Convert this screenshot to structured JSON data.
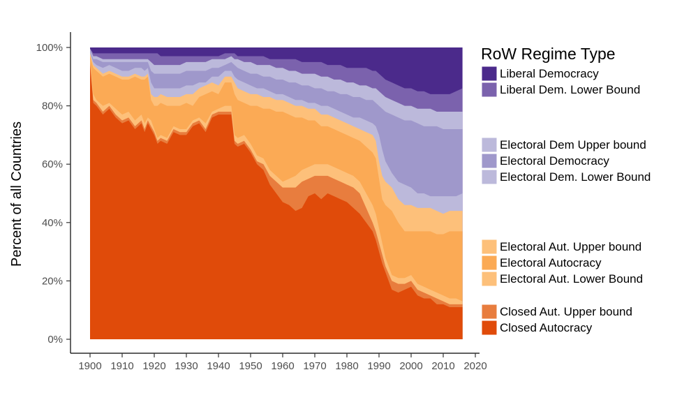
{
  "chart_data": {
    "type": "area",
    "stacked": true,
    "ylabel": "Percent of all Countries",
    "xlim": [
      1900,
      2016
    ],
    "ylim": [
      0,
      100
    ],
    "x_ticks": [
      1900,
      1910,
      1920,
      1930,
      1940,
      1950,
      1960,
      1970,
      1980,
      1990,
      2000,
      2010,
      2020
    ],
    "y_ticks": [
      {
        "value": 0,
        "label": "0%"
      },
      {
        "value": 20,
        "label": "20%"
      },
      {
        "value": 40,
        "label": "40%"
      },
      {
        "value": 60,
        "label": "60%"
      },
      {
        "value": 80,
        "label": "80%"
      },
      {
        "value": 100,
        "label": "100%"
      }
    ],
    "grid": false,
    "legend_title": "RoW Regime Type",
    "legend_position": "right",
    "x": [
      1900,
      1901,
      1902,
      1904,
      1906,
      1908,
      1910,
      1912,
      1914,
      1916,
      1917,
      1918,
      1919,
      1920,
      1921,
      1922,
      1924,
      1926,
      1928,
      1930,
      1932,
      1934,
      1936,
      1938,
      1940,
      1942,
      1944,
      1945,
      1946,
      1948,
      1950,
      1952,
      1954,
      1956,
      1958,
      1960,
      1962,
      1964,
      1966,
      1968,
      1970,
      1972,
      1974,
      1976,
      1978,
      1980,
      1982,
      1984,
      1986,
      1988,
      1989,
      1990,
      1991,
      1992,
      1994,
      1996,
      1998,
      2000,
      2002,
      2004,
      2006,
      2008,
      2010,
      2012,
      2014,
      2016
    ],
    "upper_edges": [
      {
        "name": "Closed Autocracy",
        "color": "#e04b0a",
        "values": [
          94,
          81,
          80,
          77,
          79,
          76,
          74,
          75,
          72,
          74,
          71,
          74,
          72,
          70,
          67,
          68,
          67,
          71,
          70,
          70,
          73,
          74,
          71,
          76,
          77,
          77,
          77,
          67,
          66,
          67,
          64,
          60,
          58,
          53,
          50,
          47,
          46,
          44,
          45,
          49,
          50,
          48,
          50,
          49,
          48,
          47,
          45,
          43,
          40,
          37,
          34,
          30,
          26,
          23,
          17,
          16,
          17,
          18,
          15,
          14,
          14,
          12,
          12,
          11,
          11,
          11
        ]
      },
      {
        "name": "Closed Aut. Upper bound",
        "color": "#e87d3e",
        "values": [
          95,
          82,
          81,
          78,
          80,
          77,
          75,
          76,
          73,
          75,
          72,
          75,
          73,
          71,
          68,
          69,
          68,
          72,
          71,
          71,
          74,
          75,
          72,
          77,
          78,
          78,
          78,
          68,
          67,
          68,
          65,
          61,
          60,
          56,
          54,
          52,
          52,
          52,
          54,
          55,
          56,
          56,
          56,
          55,
          54,
          53,
          52,
          50,
          45,
          40,
          37,
          33,
          29,
          25,
          20,
          19,
          19,
          20,
          17,
          16,
          15,
          14,
          13,
          12,
          12,
          12
        ]
      },
      {
        "name": "Electoral Aut. Lower Bound",
        "color": "#fdc07a",
        "values": [
          96,
          84,
          82,
          80,
          81,
          79,
          77,
          78,
          75,
          77,
          74,
          76,
          75,
          72,
          69,
          70,
          69,
          73,
          72,
          72,
          75,
          76,
          74,
          78,
          79,
          80,
          80,
          70,
          69,
          70,
          67,
          63,
          62,
          58,
          56,
          54,
          55,
          56,
          58,
          59,
          60,
          60,
          60,
          59,
          58,
          57,
          56,
          54,
          50,
          46,
          43,
          38,
          33,
          28,
          22,
          21,
          21,
          22,
          19,
          18,
          17,
          16,
          15,
          14,
          14,
          13
        ]
      },
      {
        "name": "Electoral Autocracy",
        "color": "#fbaa55",
        "values": [
          97,
          93,
          92,
          90,
          91,
          90,
          89,
          89,
          90,
          89,
          89,
          90,
          82,
          80,
          80,
          81,
          80,
          80,
          80,
          81,
          80,
          83,
          84,
          85,
          84,
          88,
          88,
          84,
          82,
          81,
          80,
          80,
          79,
          79,
          78,
          78,
          77,
          76,
          76,
          75,
          75,
          73,
          73,
          72,
          71,
          70,
          69,
          68,
          66,
          64,
          62,
          55,
          48,
          46,
          44,
          40,
          37,
          37,
          37,
          37,
          37,
          36,
          36,
          37,
          37,
          37
        ]
      },
      {
        "name": "Electoral Aut. Upper bound",
        "color": "#fdc07a",
        "values": [
          98,
          94,
          93,
          91,
          92,
          91,
          90,
          90,
          91,
          90,
          90,
          91,
          84,
          83,
          83,
          84,
          83,
          83,
          83,
          84,
          84,
          86,
          87,
          88,
          87,
          90,
          90,
          88,
          86,
          85,
          84,
          84,
          83,
          83,
          82,
          82,
          81,
          80,
          80,
          79,
          79,
          77,
          77,
          76,
          75,
          74,
          73,
          72,
          71,
          70,
          68,
          61,
          56,
          54,
          52,
          48,
          46,
          46,
          45,
          45,
          45,
          44,
          43,
          44,
          44,
          44
        ]
      },
      {
        "name": "Electoral Dem. Lower Bound",
        "color": "#bcb9db",
        "values": [
          98.5,
          95,
          94,
          93,
          94,
          93,
          92,
          92,
          93,
          93,
          92,
          93,
          88,
          86,
          86,
          86,
          86,
          86,
          86,
          87,
          87,
          88,
          88,
          90,
          90,
          92,
          92,
          90,
          89,
          88,
          87,
          86,
          86,
          85,
          84,
          84,
          83,
          82,
          82,
          81,
          81,
          80,
          80,
          79,
          78,
          77,
          76,
          76,
          75,
          74,
          73,
          70,
          65,
          61,
          57,
          54,
          53,
          52,
          50,
          50,
          49,
          49,
          49,
          49,
          49,
          50
        ]
      },
      {
        "name": "Electoral Democracy",
        "color": "#9f98cb",
        "values": [
          99,
          96,
          96,
          95,
          95,
          95,
          95,
          95,
          95,
          95,
          95,
          95,
          92,
          91,
          91,
          91,
          91,
          91,
          91,
          92,
          92,
          92,
          92,
          93,
          93,
          94,
          95,
          94,
          93,
          92,
          91,
          91,
          90,
          90,
          89,
          89,
          88,
          88,
          87,
          87,
          86,
          86,
          85,
          85,
          84,
          84,
          83,
          83,
          82,
          82,
          81,
          80,
          79,
          78,
          77,
          76,
          75,
          75,
          74,
          73,
          73,
          73,
          72,
          72,
          72,
          72
        ]
      },
      {
        "name": "Electoral Dem Upper bound",
        "color": "#bcb9db",
        "values": [
          99.5,
          97,
          97,
          96,
          96,
          96,
          96,
          96,
          96,
          96,
          96,
          96,
          95,
          94,
          94,
          94,
          94,
          94,
          94,
          95,
          95,
          95,
          95,
          96,
          96,
          96,
          97,
          96,
          96,
          95,
          95,
          94,
          94,
          94,
          93,
          93,
          92,
          92,
          91,
          91,
          91,
          90,
          90,
          89,
          89,
          88,
          88,
          87,
          87,
          86,
          86,
          85,
          84,
          83,
          82,
          81,
          80,
          80,
          79,
          79,
          79,
          78,
          78,
          78,
          78,
          78
        ]
      },
      {
        "name": "Liberal Dem. Lower Bound",
        "color": "#7b62ad",
        "values": [
          99.7,
          98,
          98,
          98,
          98,
          98,
          98,
          98,
          98,
          98,
          98,
          98,
          98,
          98,
          98,
          97,
          97,
          97,
          97,
          97,
          97,
          97,
          97,
          97,
          97,
          98,
          98,
          98,
          97,
          97,
          97,
          97,
          97,
          96,
          96,
          96,
          96,
          96,
          95,
          95,
          95,
          95,
          94,
          94,
          94,
          93,
          93,
          93,
          93,
          92,
          92,
          91,
          90,
          89,
          88,
          87,
          86,
          86,
          85,
          85,
          84,
          84,
          84,
          84,
          85,
          86
        ]
      },
      {
        "name": "Liberal Democracy",
        "color": "#4b2a8b",
        "values": [
          100,
          100,
          100,
          100,
          100,
          100,
          100,
          100,
          100,
          100,
          100,
          100,
          100,
          100,
          100,
          100,
          100,
          100,
          100,
          100,
          100,
          100,
          100,
          100,
          100,
          100,
          100,
          100,
          100,
          100,
          100,
          100,
          100,
          100,
          100,
          100,
          100,
          100,
          100,
          100,
          100,
          100,
          100,
          100,
          100,
          100,
          100,
          100,
          100,
          100,
          100,
          100,
          100,
          100,
          100,
          100,
          100,
          100,
          100,
          100,
          100,
          100,
          100,
          100,
          100,
          100
        ]
      }
    ],
    "legend": [
      {
        "label": "Liberal Democracy",
        "color": "#4b2a8b"
      },
      {
        "label": "Liberal Dem. Lower Bound",
        "color": "#7b62ad"
      },
      {
        "label": "Electoral Dem Upper bound",
        "color": "#bcb9db"
      },
      {
        "label": "Electoral Democracy",
        "color": "#9f98cb"
      },
      {
        "label": "Electoral Dem. Lower Bound",
        "color": "#bcb9db"
      },
      {
        "label": "Electoral Aut. Upper bound",
        "color": "#fdc07a"
      },
      {
        "label": "Electoral Autocracy",
        "color": "#fbaa55"
      },
      {
        "label": "Electoral Aut. Lower Bound",
        "color": "#fdc07a"
      },
      {
        "label": "Closed Aut. Upper bound",
        "color": "#e87d3e"
      },
      {
        "label": "Closed Autocracy",
        "color": "#e04b0a"
      }
    ]
  }
}
